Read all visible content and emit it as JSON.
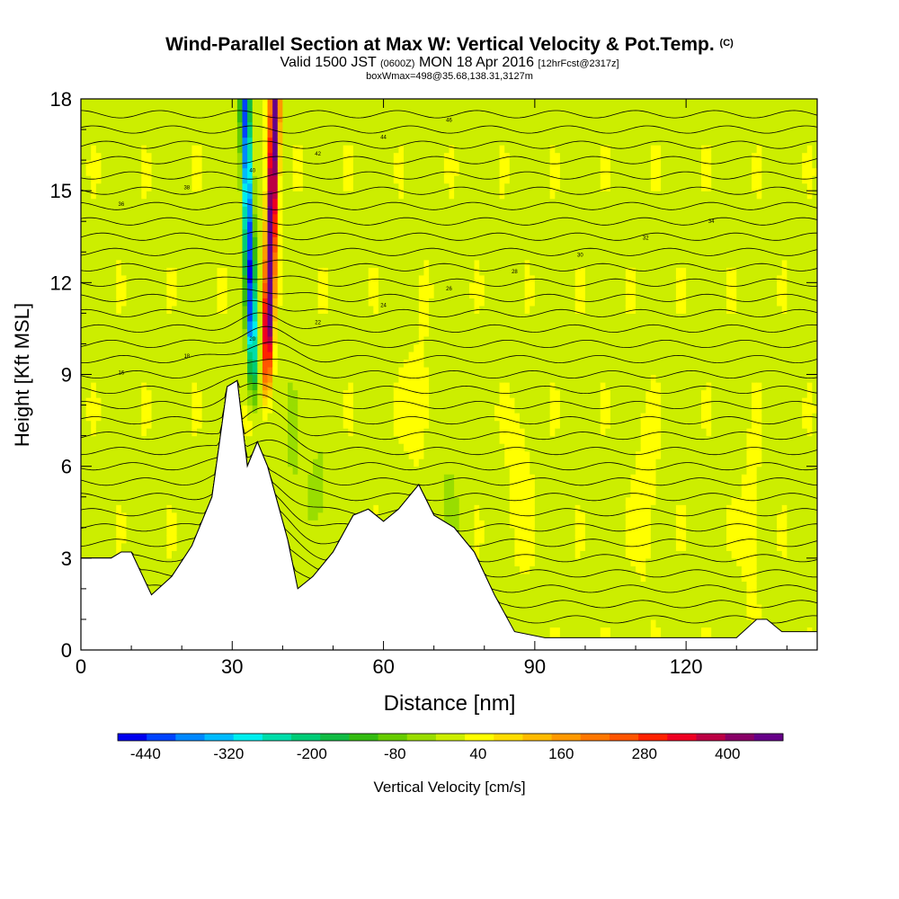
{
  "header": {
    "title": "Wind-Parallel Section at Max W: Vertical Velocity & Pot.Temp.",
    "title_mark": "(C)",
    "valid_prefix": "Valid 1500 JST",
    "valid_utc": "(0600Z)",
    "valid_date": "MON 18 Apr 2016",
    "forecast": "[12hrFcst@2317z]",
    "box_info": "boxWmax=498@35.68,138.31,3127m"
  },
  "chart_data": {
    "type": "heatmap",
    "title": "Wind-Parallel Section at Max W: Vertical Velocity & Pot.Temp.",
    "xlabel": "Distance [nm]",
    "ylabel": "Height [Kft MSL]",
    "xlim": [
      0,
      146
    ],
    "ylim": [
      0,
      18
    ],
    "x_ticks": [
      "0",
      "30",
      "60",
      "90",
      "120"
    ],
    "y_ticks": [
      "0",
      "3",
      "6",
      "9",
      "12",
      "15",
      "18"
    ],
    "colorbar": {
      "label": "Vertical Velocity [cm/s]",
      "tick_labels": [
        "-440",
        "-320",
        "-200",
        "-80",
        "40",
        "160",
        "280",
        "400"
      ],
      "min": -480,
      "max": 480,
      "colors": [
        "#0000ee",
        "#0044ff",
        "#0088ff",
        "#00bbff",
        "#00eeee",
        "#00ddaa",
        "#00cc77",
        "#11bb44",
        "#33bb11",
        "#66cc00",
        "#99dd00",
        "#ccee00",
        "#ffff00",
        "#ffdd00",
        "#ffbb00",
        "#ff9900",
        "#ff7700",
        "#ff5500",
        "#ff2200",
        "#ee0022",
        "#bb0044",
        "#880066",
        "#660088"
      ]
    },
    "terrain_kft": [
      [
        0,
        3.0
      ],
      [
        6,
        3.0
      ],
      [
        8,
        3.2
      ],
      [
        10,
        3.2
      ],
      [
        14,
        1.8
      ],
      [
        18,
        2.4
      ],
      [
        22,
        3.4
      ],
      [
        26,
        5.0
      ],
      [
        29,
        8.6
      ],
      [
        31,
        8.8
      ],
      [
        33,
        6.0
      ],
      [
        35,
        6.8
      ],
      [
        37,
        6.0
      ],
      [
        41,
        3.6
      ],
      [
        43,
        2.0
      ],
      [
        46,
        2.4
      ],
      [
        50,
        3.2
      ],
      [
        54,
        4.4
      ],
      [
        57,
        4.6
      ],
      [
        60,
        4.2
      ],
      [
        63,
        4.6
      ],
      [
        67,
        5.4
      ],
      [
        70,
        4.4
      ],
      [
        74,
        4.0
      ],
      [
        78,
        3.2
      ],
      [
        82,
        1.8
      ],
      [
        86,
        0.6
      ],
      [
        92,
        0.4
      ],
      [
        130,
        0.4
      ],
      [
        134,
        1.0
      ],
      [
        136,
        1.0
      ],
      [
        139,
        0.6
      ],
      [
        146,
        0.6
      ]
    ],
    "updraft_core": {
      "x_base": 36.5,
      "x_top": 38.5,
      "peak_cm_s": 498
    },
    "downdraft_core": {
      "x_base": 34.5,
      "x_top": 32.5,
      "peak_cm_s": -440
    },
    "theta_contour_labels": [
      "16",
      "18",
      "20",
      "22",
      "24",
      "26",
      "28",
      "30",
      "32",
      "34",
      "36",
      "38",
      "40",
      "42",
      "44",
      "46"
    ]
  }
}
